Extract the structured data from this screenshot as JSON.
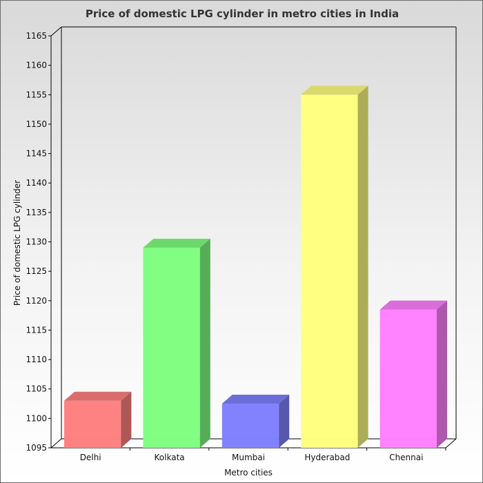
{
  "chart_data": {
    "type": "bar",
    "title": "Price of domestic LPG cylinder in metro cities in India",
    "xlabel": "Metro cities",
    "ylabel": "Price of domestic LPG cylinder",
    "categories": [
      "Delhi",
      "Kolkata",
      "Mumbai",
      "Hyderabad",
      "Chennai"
    ],
    "values": [
      1103,
      1129,
      1102.5,
      1155,
      1118.5
    ],
    "colors": [
      "#ff8080",
      "#80ff80",
      "#8080ff",
      "#ffff80",
      "#ff80ff"
    ],
    "ylim": [
      1095,
      1165
    ],
    "yticks": [
      1095,
      1100,
      1105,
      1110,
      1115,
      1120,
      1125,
      1130,
      1135,
      1140,
      1145,
      1150,
      1155,
      1160,
      1165
    ],
    "grid": false,
    "legend": "none",
    "style": "3d"
  }
}
